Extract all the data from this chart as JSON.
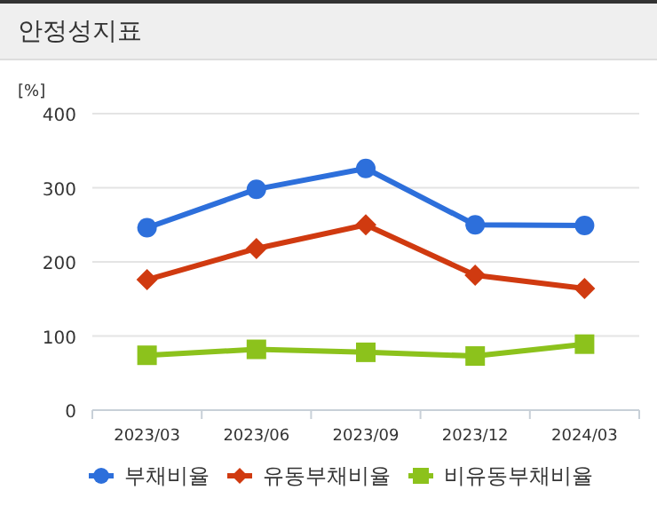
{
  "chart_data": {
    "type": "line",
    "title": "안정성지표",
    "ylabel": "[%]",
    "categories": [
      "2023/03",
      "2023/06",
      "2023/09",
      "2023/12",
      "2024/03"
    ],
    "series": [
      {
        "name": "부채비율",
        "color": "#2d6fdb",
        "marker": "circle",
        "values": [
          246,
          298,
          326,
          250,
          249
        ]
      },
      {
        "name": "유동부채비율",
        "color": "#d03a10",
        "marker": "diamond",
        "values": [
          176,
          218,
          250,
          182,
          164
        ]
      },
      {
        "name": "비유동부채비율",
        "color": "#8cc21c",
        "marker": "square",
        "values": [
          74,
          82,
          78,
          73,
          89
        ]
      }
    ],
    "ylim": [
      0,
      400
    ],
    "yticks": [
      0,
      100,
      200,
      300,
      400
    ],
    "grid": "y",
    "legend": "bottom"
  }
}
